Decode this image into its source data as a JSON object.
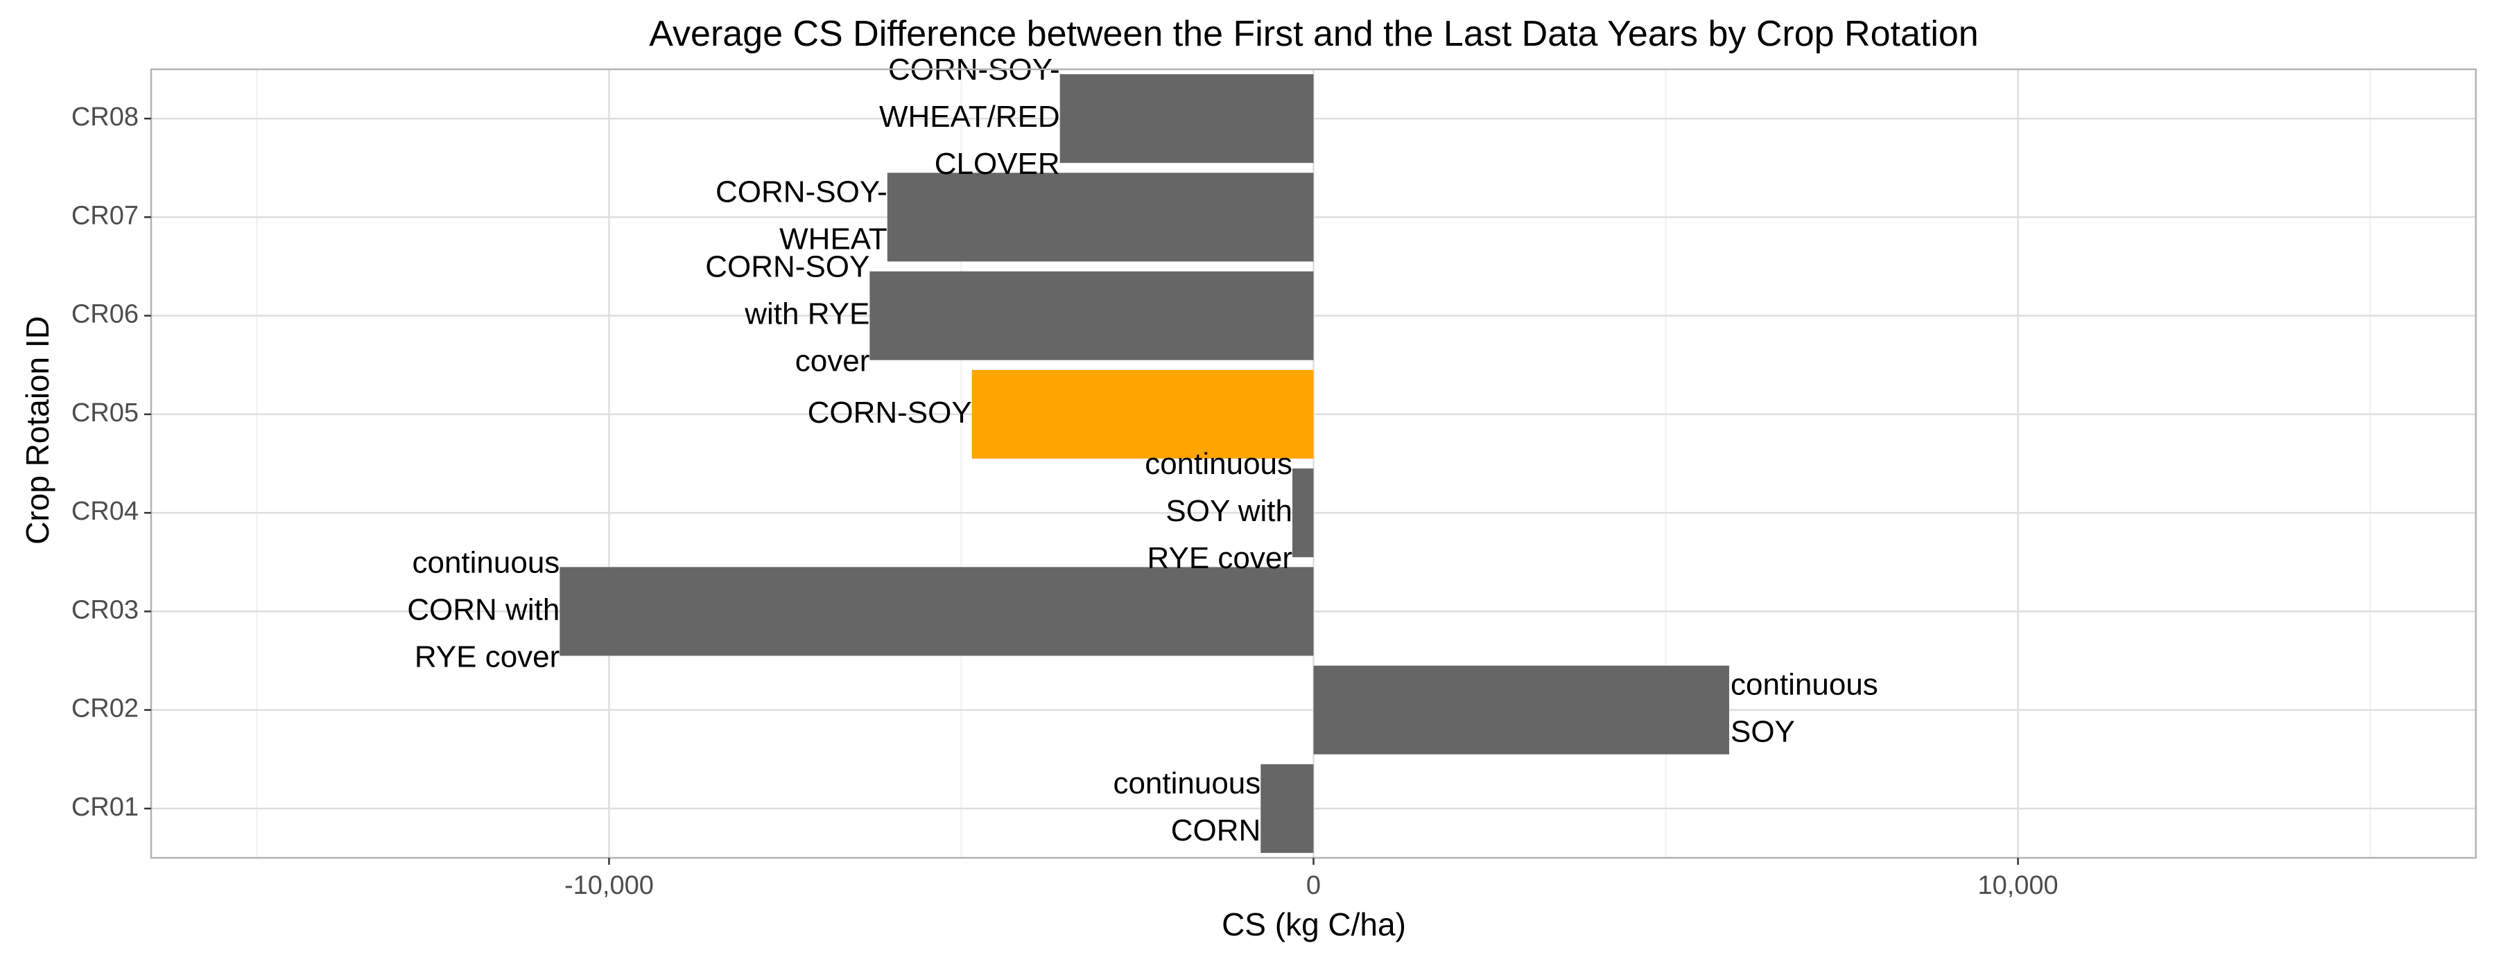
{
  "chart_data": {
    "type": "bar",
    "orientation": "horizontal",
    "title": "Average CS Difference between the First and the Last Data Years by Crop Rotation",
    "xlabel": "CS (kg C/ha)",
    "ylabel": "Crop Rotaion ID",
    "xlim": [
      -16500,
      16500
    ],
    "x_ticks": [
      -10000,
      0,
      10000
    ],
    "x_tick_labels": [
      "-10,000",
      "0",
      "10,000"
    ],
    "grid": true,
    "legend": "none",
    "categories": [
      "CR01",
      "CR02",
      "CR03",
      "CR04",
      "CR05",
      "CR06",
      "CR07",
      "CR08"
    ],
    "values": [
      -750,
      5900,
      -10700,
      -300,
      -4850,
      -6300,
      -6050,
      -3600
    ],
    "bar_labels": [
      [
        "continuous",
        "CORN"
      ],
      [
        "continuous",
        "SOY"
      ],
      [
        "continuous",
        "CORN with",
        "RYE cover"
      ],
      [
        "continuous",
        "SOY with",
        "RYE cover"
      ],
      [
        "CORN-SOY"
      ],
      [
        "CORN-SOY",
        "with RYE",
        "cover"
      ],
      [
        "CORN-SOY-",
        "WHEAT"
      ],
      [
        "CORN-SOY-",
        "WHEAT/RED",
        "CLOVER"
      ]
    ],
    "highlight_category": "CR05",
    "colors": {
      "bar": "#666666",
      "highlight": "#FFA500",
      "panel_border": "#b3b3b3",
      "grid_major": "#dedede",
      "grid_minor": "#f0f0f0",
      "tick_text": "#4d4d4d"
    }
  }
}
